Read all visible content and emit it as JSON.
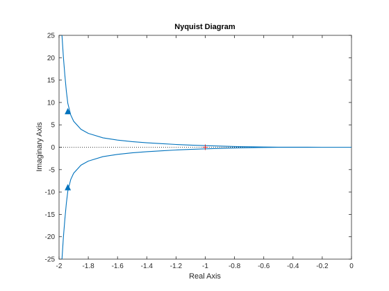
{
  "chart_data": {
    "type": "line",
    "title": "Nyquist Diagram",
    "xlabel": "Real Axis",
    "ylabel": "Imaginary Axis",
    "xlim": [
      -2,
      0
    ],
    "ylim": [
      -25,
      25
    ],
    "xticks": [
      "-2",
      "-1.8",
      "-1.6",
      "-1.4",
      "-1.2",
      "-1",
      "-0.8",
      "-0.6",
      "-0.4",
      "-0.2",
      "0"
    ],
    "xtick_values": [
      -2,
      -1.8,
      -1.6,
      -1.4,
      -1.2,
      -1,
      -0.8,
      -0.6,
      -0.4,
      -0.2,
      0
    ],
    "yticks": [
      "25",
      "20",
      "15",
      "10",
      "5",
      "0",
      "-5",
      "-10",
      "-15",
      "-20",
      "-25"
    ],
    "ytick_values": [
      25,
      20,
      15,
      10,
      5,
      0,
      -5,
      -10,
      -15,
      -20,
      -25
    ],
    "grid": false,
    "line_color": "#0072BD",
    "critical_point": {
      "x": -1,
      "y": 0,
      "marker": "+",
      "color": "#D62728"
    },
    "zero_line": {
      "y": 0,
      "style": "dotted"
    },
    "series": [
      {
        "x": [
          -1.98,
          -1.97,
          -1.96,
          -1.95,
          -1.94,
          -1.92,
          -1.9,
          -1.85,
          -1.8,
          -1.7,
          -1.6,
          -1.5,
          -1.4,
          -1.3,
          -1.2,
          -1.1,
          -1.0,
          -0.9,
          -0.8,
          -0.7,
          -0.6,
          -0.5,
          -0.4,
          -0.3,
          -0.2,
          -0.1,
          0
        ],
        "y": [
          25,
          20,
          16,
          12.5,
          9.8,
          7.2,
          5.8,
          4.0,
          3.1,
          2.1,
          1.6,
          1.25,
          1.0,
          0.8,
          0.62,
          0.48,
          0.36,
          0.26,
          0.17,
          0.1,
          0.05,
          0.02,
          0.01,
          0.005,
          0.002,
          0.001,
          0
        ]
      },
      {
        "x": [
          -1.98,
          -1.97,
          -1.96,
          -1.95,
          -1.94,
          -1.92,
          -1.9,
          -1.85,
          -1.8,
          -1.7,
          -1.6,
          -1.5,
          -1.4,
          -1.3,
          -1.2,
          -1.1,
          -1.0,
          -0.9,
          -0.8,
          -0.7,
          -0.6,
          -0.5,
          -0.4,
          -0.3,
          -0.2,
          -0.1,
          0
        ],
        "y": [
          -25,
          -20,
          -16,
          -12.5,
          -9.8,
          -7.2,
          -5.8,
          -4.0,
          -3.1,
          -2.1,
          -1.6,
          -1.25,
          -1.0,
          -0.8,
          -0.62,
          -0.48,
          -0.36,
          -0.26,
          -0.17,
          -0.1,
          -0.05,
          -0.02,
          -0.01,
          -0.005,
          -0.002,
          -0.001,
          0
        ]
      }
    ],
    "arrows": [
      {
        "x": -1.94,
        "y": 8.0,
        "direction": "up"
      },
      {
        "x": -1.94,
        "y": -9.0,
        "direction": "up"
      }
    ]
  }
}
